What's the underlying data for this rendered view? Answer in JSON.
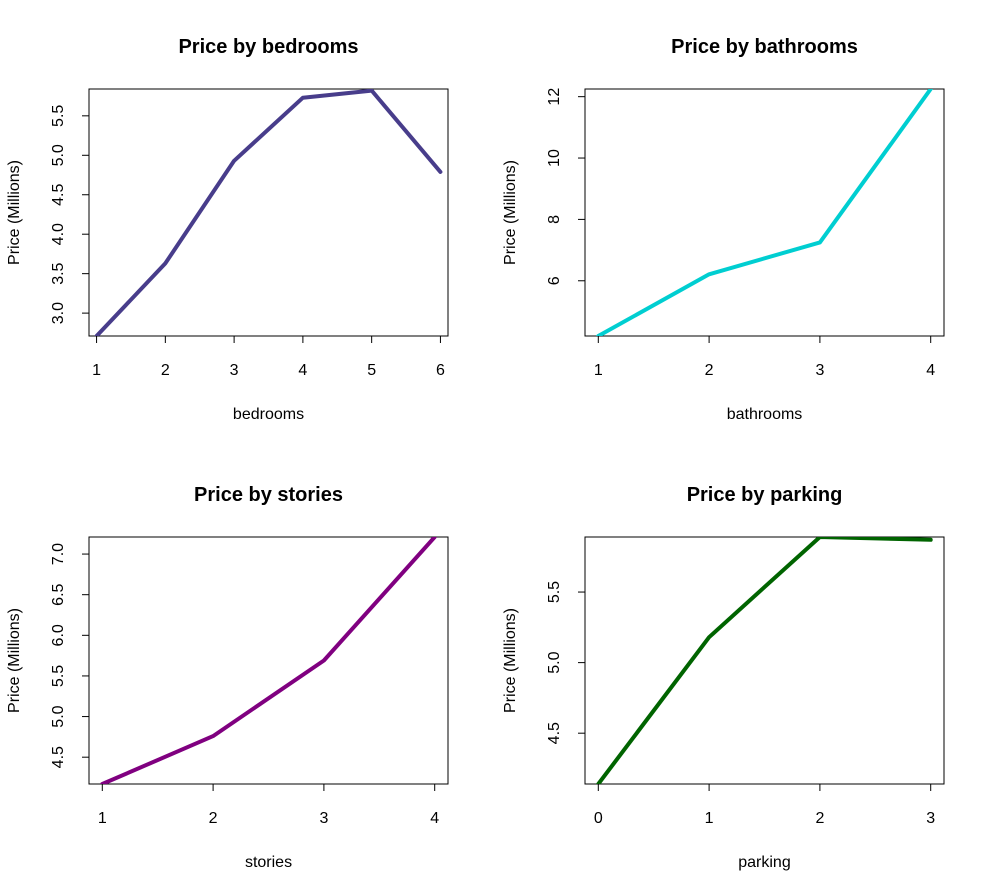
{
  "chart_data": [
    {
      "type": "line",
      "title": "Price by bedrooms",
      "xlabel": "bedrooms",
      "ylabel": "Price (Millions)",
      "color": "#483D8B",
      "x": [
        1,
        2,
        3,
        4,
        5,
        6
      ],
      "y": [
        2.71,
        3.63,
        4.93,
        5.73,
        5.82,
        4.79
      ],
      "xlim": [
        0.89,
        6.11
      ],
      "ylim": [
        2.71,
        5.84
      ],
      "xticks": [
        1,
        2,
        3,
        4,
        5,
        6
      ],
      "xtick_labels": [
        "1",
        "2",
        "3",
        "4",
        "5",
        "6"
      ],
      "yticks": [
        3.0,
        3.5,
        4.0,
        4.5,
        5.0,
        5.5
      ],
      "ytick_labels": [
        "3.0",
        "3.5",
        "4.0",
        "4.5",
        "5.0",
        "5.5"
      ],
      "grid": false,
      "legend": null
    },
    {
      "type": "line",
      "title": "Price by bathrooms",
      "xlabel": "bathrooms",
      "ylabel": "Price (Millions)",
      "color": "#00CED1",
      "x": [
        1,
        2,
        3,
        4
      ],
      "y": [
        4.2,
        6.21,
        7.25,
        12.25
      ],
      "xlim": [
        0.88,
        4.12
      ],
      "ylim": [
        4.2,
        12.25
      ],
      "xticks": [
        1,
        2,
        3,
        4
      ],
      "xtick_labels": [
        "1",
        "2",
        "3",
        "4"
      ],
      "yticks": [
        6,
        8,
        10,
        12
      ],
      "ytick_labels": [
        "6",
        "8",
        "10",
        "12"
      ],
      "grid": false,
      "legend": null
    },
    {
      "type": "line",
      "title": "Price by stories",
      "xlabel": "stories",
      "ylabel": "Price (Millions)",
      "color": "#800080",
      "x": [
        1,
        2,
        3,
        4
      ],
      "y": [
        4.17,
        4.76,
        5.69,
        7.21
      ],
      "xlim": [
        0.88,
        4.12
      ],
      "ylim": [
        4.17,
        7.21
      ],
      "xticks": [
        1,
        2,
        3,
        4
      ],
      "xtick_labels": [
        "1",
        "2",
        "3",
        "4"
      ],
      "yticks": [
        4.5,
        5.0,
        5.5,
        6.0,
        6.5,
        7.0
      ],
      "ytick_labels": [
        "4.5",
        "5.0",
        "5.5",
        "6.0",
        "6.5",
        "7.0"
      ],
      "grid": false,
      "legend": null
    },
    {
      "type": "line",
      "title": "Price by parking",
      "xlabel": "parking",
      "ylabel": "Price (Millions)",
      "color": "#006400",
      "x": [
        0,
        1,
        2,
        3
      ],
      "y": [
        4.14,
        5.18,
        5.89,
        5.87
      ],
      "xlim": [
        -0.12,
        3.12
      ],
      "ylim": [
        4.14,
        5.89
      ],
      "xticks": [
        0,
        1,
        2,
        3
      ],
      "xtick_labels": [
        "0",
        "1",
        "2",
        "3"
      ],
      "yticks": [
        4.5,
        5.0,
        5.5
      ],
      "ytick_labels": [
        "4.5",
        "5.0",
        "5.5"
      ],
      "grid": false,
      "legend": null
    }
  ]
}
